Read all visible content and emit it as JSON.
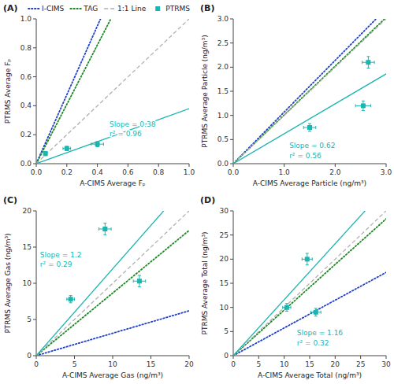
{
  "chart_data": [
    {
      "type": "scatter",
      "title": "(A)",
      "x_label": "A-CIMS Average Fₚ",
      "y_label": "PTRMS Average Fₚ",
      "xlim": [
        0,
        1.0
      ],
      "ylim": [
        0,
        1.0
      ],
      "xticks": [
        {
          "value": 0.0,
          "label": "0.0"
        },
        0.2,
        0.4,
        0.6,
        0.8,
        {
          "value": 1.0,
          "label": "1.0"
        }
      ],
      "yticks": [
        {
          "value": 0.0,
          "label": "0.0"
        },
        0.2,
        0.4,
        0.6,
        0.8,
        {
          "value": 1.0,
          "label": "1.0"
        }
      ],
      "legend": "top",
      "series": [
        {
          "name": "I-CIMS",
          "type": "line",
          "color": "#2040cc",
          "line_style": "dotted",
          "slope": 2.38
        },
        {
          "name": "TAG",
          "type": "line",
          "color": "#1a8820",
          "line_style": "dotted",
          "slope": 2.05
        },
        {
          "name": "1:1 Line",
          "type": "line",
          "color": "#b0b0b0",
          "line_style": "dashed",
          "slope": 1
        },
        {
          "name": "PTRMS",
          "type": "scatter",
          "color": "#1ab5b0",
          "marker": "square",
          "line_style": "solid",
          "slope": 0.38,
          "x": [
            0.06,
            0.2,
            0.4
          ],
          "values": [
            0.07,
            0.105,
            0.135
          ],
          "x_err": [
            0.01,
            0.025,
            0.04
          ],
          "y_err": [
            0.015,
            0.015,
            0.018
          ]
        }
      ],
      "annotations": [
        {
          "text": [
            "Slope = 0.38",
            "r² = 0.96"
          ],
          "x": 0.48,
          "y": 0.3
        }
      ]
    },
    {
      "type": "scatter",
      "title": "(B)",
      "x_label": "A-CIMS Average Particle (ng/m³)",
      "y_label": "PTRMS Average Particle (ng/m³)",
      "xlim": [
        0,
        3.0
      ],
      "ylim": [
        0,
        3.0
      ],
      "xticks": [
        {
          "value": 0.0,
          "label": "0.0"
        },
        {
          "value": 1.0,
          "label": "1.0"
        },
        {
          "value": 2.0,
          "label": "2.0"
        },
        {
          "value": 3.0,
          "label": "3.0"
        }
      ],
      "yticks": [
        {
          "value": 0.0,
          "label": "0.0"
        },
        0.5,
        {
          "value": 1.0,
          "label": "1.0"
        },
        1.5,
        {
          "value": 2.0,
          "label": "2.0"
        },
        2.5,
        {
          "value": 3.0,
          "label": "3.0"
        }
      ],
      "series": [
        {
          "type": "line",
          "color": "#2040cc",
          "line_style": "dotted",
          "slope": 1.07
        },
        {
          "type": "line",
          "color": "#1a8820",
          "line_style": "dotted",
          "slope": 1.01
        },
        {
          "type": "line",
          "color": "#b0b0b0",
          "line_style": "dashed",
          "slope": 1
        },
        {
          "type": "scatter",
          "color": "#1ab5b0",
          "marker": "square",
          "line_style": "solid",
          "slope": 0.62,
          "x": [
            1.5,
            2.55,
            2.65
          ],
          "values": [
            0.75,
            1.2,
            2.1
          ],
          "x_err": [
            0.12,
            0.15,
            0.12
          ],
          "y_err": [
            0.08,
            0.1,
            0.12
          ]
        }
      ],
      "annotations": [
        {
          "text": [
            "Slope = 0.62",
            "r² = 0.56"
          ],
          "x": 1.1,
          "y": 0.45
        }
      ]
    },
    {
      "type": "scatter",
      "title": "(C)",
      "x_label": "A-CIMS Average Gas (ng/m³)",
      "y_label": "PTRMS Average Gas (ng/m³)",
      "xlim": [
        0,
        20
      ],
      "ylim": [
        0,
        20
      ],
      "xticks": [
        0,
        5,
        10,
        15,
        20
      ],
      "yticks": [
        0,
        5,
        10,
        15,
        20
      ],
      "series": [
        {
          "type": "line",
          "color": "#2040cc",
          "line_style": "dotted",
          "slope": 0.31
        },
        {
          "type": "line",
          "color": "#1a8820",
          "line_style": "dotted",
          "slope": 0.865
        },
        {
          "type": "line",
          "color": "#b0b0b0",
          "line_style": "dashed",
          "slope": 1
        },
        {
          "type": "scatter",
          "color": "#1ab5b0",
          "marker": "square",
          "line_style": "solid",
          "slope": 1.2,
          "x": [
            4.5,
            9.0,
            13.5
          ],
          "values": [
            7.8,
            17.5,
            10.3
          ],
          "x_err": [
            0.5,
            0.8,
            0.8
          ],
          "y_err": [
            0.5,
            0.8,
            0.8
          ]
        }
      ],
      "annotations": [
        {
          "text": [
            "Slope = 1.2",
            "r² = 0.29"
          ],
          "x": 0.5,
          "y": 14.5
        }
      ]
    },
    {
      "type": "scatter",
      "title": "(D)",
      "x_label": "A-CIMS Average Total (ng/m³)",
      "y_label": "PTRMS Average Total (ng/m³)",
      "xlim": [
        0,
        30
      ],
      "ylim": [
        0,
        30
      ],
      "xticks": [
        0,
        5,
        10,
        15,
        20,
        25,
        30
      ],
      "yticks": [
        0,
        5,
        10,
        15,
        20,
        25,
        30
      ],
      "series": [
        {
          "type": "line",
          "color": "#2040cc",
          "line_style": "dotted",
          "slope": 0.575
        },
        {
          "type": "line",
          "color": "#1a8820",
          "line_style": "dotted",
          "slope": 0.945
        },
        {
          "type": "line",
          "color": "#b0b0b0",
          "line_style": "dashed",
          "slope": 1
        },
        {
          "type": "scatter",
          "color": "#1ab5b0",
          "marker": "square",
          "line_style": "solid",
          "slope": 1.16,
          "x": [
            10.5,
            14.5,
            16.2
          ],
          "values": [
            10.0,
            20.0,
            9.0
          ],
          "x_err": [
            0.8,
            1.0,
            1.0
          ],
          "y_err": [
            0.8,
            1.2,
            0.8
          ]
        }
      ],
      "annotations": [
        {
          "text": [
            "Slope = 1.16",
            "r² = 0.32"
          ],
          "x": 12.5,
          "y": 5.5
        }
      ]
    }
  ]
}
